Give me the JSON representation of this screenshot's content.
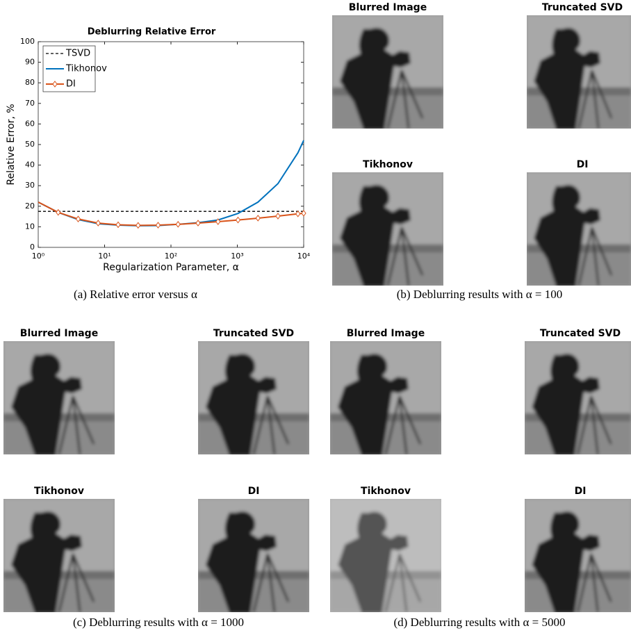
{
  "chart_data": {
    "type": "line",
    "title": "Deblurring Relative Error",
    "x_label": "Regularization Parameter, α",
    "y_label": "Relative Error, %",
    "x": [
      1,
      2,
      4,
      8,
      16,
      32,
      64,
      128,
      256,
      512,
      1024,
      2048,
      4096,
      8192,
      10000
    ],
    "series": [
      {
        "name": "TSVD",
        "color": "#000000",
        "style": "dashed",
        "values": [
          17.5,
          17.5,
          17.5,
          17.5,
          17.5,
          17.5,
          17.5,
          17.5,
          17.5,
          17.5,
          17.5,
          17.5,
          17.5,
          17.5,
          17.5
        ]
      },
      {
        "name": "Tikhonov",
        "color": "#0072bd",
        "style": "solid",
        "values": [
          22,
          17,
          13.5,
          11.5,
          10.8,
          10.5,
          10.6,
          11.2,
          12,
          13.3,
          16.5,
          22,
          31,
          46,
          52
        ]
      },
      {
        "name": "DI",
        "color": "#d95319",
        "style": "diamond",
        "values": [
          22,
          17,
          13.8,
          11.8,
          11,
          10.7,
          10.8,
          11.2,
          11.8,
          12.5,
          13.3,
          14.2,
          15.2,
          16.3,
          16.6
        ]
      }
    ],
    "xlim": [
      1,
      10000
    ],
    "x_log": true,
    "xticks": [
      {
        "value": 1,
        "label": "10⁰"
      },
      {
        "value": 10,
        "label": "10¹"
      },
      {
        "value": 100,
        "label": "10²"
      },
      {
        "value": 1000,
        "label": "10³"
      },
      {
        "value": 10000,
        "label": "10⁴"
      }
    ],
    "ylim": [
      0,
      100
    ],
    "yticks": [
      0,
      10,
      20,
      30,
      40,
      50,
      60,
      70,
      80,
      90,
      100
    ],
    "legend": "upper-left"
  },
  "chart_caption": "(a) Relative error versus α",
  "panels": [
    {
      "caption": "(b) Deblurring results with α = 100",
      "images": [
        "Blurred Image",
        "Truncated SVD",
        "Tikhonov",
        "DI"
      ]
    },
    {
      "caption": "(c) Deblurring results with α = 1000",
      "images": [
        "Blurred Image",
        "Truncated SVD",
        "Tikhonov",
        "DI"
      ]
    },
    {
      "caption": "(d) Deblurring results with α = 5000",
      "images": [
        "Blurred Image",
        "Truncated SVD",
        "Tikhonov",
        "DI"
      ]
    }
  ]
}
